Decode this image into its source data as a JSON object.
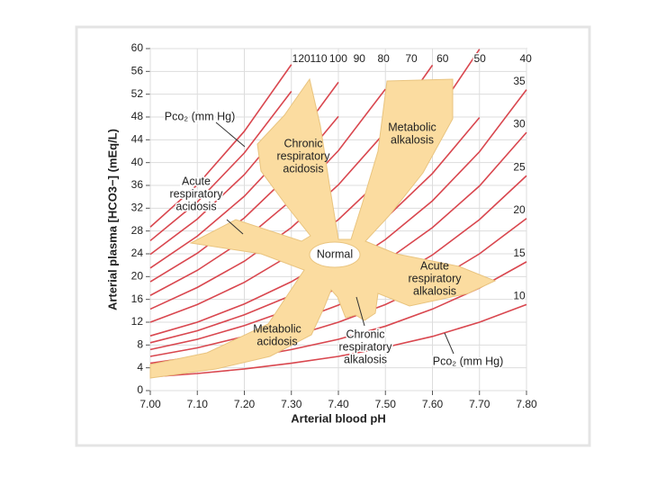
{
  "chart_data": {
    "type": "line",
    "xlabel": "Arterial blood pH",
    "ylabel": "Arterial plasma [HCO3−] (mEq/L)",
    "xlim": [
      7.0,
      7.8
    ],
    "ylim": [
      0,
      60
    ],
    "xticks": [
      {
        "value": 7.0,
        "label": "7.00"
      },
      {
        "value": 7.1,
        "label": "7.10"
      },
      {
        "value": 7.2,
        "label": "7.20"
      },
      {
        "value": 7.3,
        "label": "7.30"
      },
      {
        "value": 7.4,
        "label": "7.40"
      },
      {
        "value": 7.5,
        "label": "7.50"
      },
      {
        "value": 7.6,
        "label": "7.60"
      },
      {
        "value": 7.7,
        "label": "7.70"
      },
      {
        "value": 7.8,
        "label": "7.80"
      }
    ],
    "yticks": [
      0,
      4,
      8,
      12,
      16,
      20,
      24,
      28,
      32,
      36,
      40,
      44,
      48,
      52,
      56,
      60
    ],
    "grid": true,
    "x": [
      7.0,
      7.1,
      7.2,
      7.3,
      7.4,
      7.5,
      7.6,
      7.7,
      7.8
    ],
    "series": [
      {
        "name": "10",
        "color": "#d9474f",
        "values": [
          2.4,
          3.0,
          3.8,
          4.8,
          6.0,
          7.6,
          9.5,
          12.0,
          15.1
        ]
      },
      {
        "name": "15",
        "color": "#d9474f",
        "values": [
          3.6,
          4.5,
          5.7,
          7.2,
          9.0,
          11.3,
          14.3,
          18.0,
          22.6
        ]
      },
      {
        "name": "20",
        "color": "#d9474f",
        "values": [
          4.8,
          6.0,
          7.6,
          9.5,
          12.0,
          15.1,
          19.0,
          24.0,
          30.2
        ]
      },
      {
        "name": "25",
        "color": "#d9474f",
        "values": [
          6.0,
          7.5,
          9.5,
          11.9,
          15.0,
          18.9,
          23.8,
          30.0,
          37.7
        ]
      },
      {
        "name": "30",
        "color": "#d9474f",
        "values": [
          7.2,
          9.0,
          11.4,
          14.3,
          18.0,
          22.7,
          28.6,
          35.9,
          45.3
        ]
      },
      {
        "name": "35",
        "color": "#d9474f",
        "values": [
          8.4,
          10.5,
          13.3,
          16.7,
          21.0,
          26.5,
          33.3,
          41.9,
          52.8
        ]
      },
      {
        "name": "40",
        "color": "#d9474f",
        "values": [
          9.6,
          12.0,
          15.2,
          19.1,
          24.0,
          30.2,
          38.1,
          47.9,
          null
        ]
      },
      {
        "name": "50",
        "color": "#d9474f",
        "values": [
          12.0,
          15.1,
          19.0,
          23.9,
          30.0,
          37.8,
          47.6,
          59.9,
          null
        ]
      },
      {
        "name": "60",
        "color": "#d9474f",
        "values": [
          14.3,
          18.1,
          22.7,
          28.6,
          36.1,
          45.4,
          57.1,
          null,
          null
        ]
      },
      {
        "name": "70",
        "color": "#d9474f",
        "values": [
          16.7,
          21.1,
          26.5,
          33.4,
          42.1,
          52.9,
          null,
          null,
          null
        ]
      },
      {
        "name": "80",
        "color": "#d9474f",
        "values": [
          19.1,
          24.1,
          30.3,
          38.2,
          48.1,
          null,
          null,
          null,
          null
        ]
      },
      {
        "name": "90",
        "color": "#d9474f",
        "values": [
          21.5,
          27.1,
          34.1,
          42.9,
          54.1,
          null,
          null,
          null,
          null
        ]
      },
      {
        "name": "100",
        "color": "#d9474f",
        "values": [
          23.9,
          30.1,
          37.9,
          47.7,
          null,
          null,
          null,
          null,
          null
        ]
      },
      {
        "name": "110",
        "color": "#d9474f",
        "values": [
          26.3,
          33.1,
          41.7,
          52.5,
          null,
          null,
          null,
          null,
          null
        ]
      },
      {
        "name": "120",
        "color": "#d9474f",
        "values": [
          28.7,
          36.1,
          45.5,
          57.2,
          null,
          null,
          null,
          null,
          null
        ]
      }
    ],
    "annotations": {
      "pco2_top": "Pco₂ (mm Hg)",
      "pco2_bottom": "Pco₂ (mm Hg)",
      "normal": "Normal",
      "chronic_respiratory_acidosis": [
        "Chronic",
        "respiratory",
        "acidosis"
      ],
      "acute_respiratory_acidosis": [
        "Acute",
        "respiratory",
        "acidosis"
      ],
      "metabolic_alkalosis": [
        "Metabolic",
        "alkalosis"
      ],
      "acute_respiratory_alkalosis": [
        "Acute",
        "respiratory",
        "alkalosis"
      ],
      "metabolic_acidosis": [
        "Metabolic",
        "acidosis"
      ],
      "chronic_respiratory_alkalosis": [
        "Chronic",
        "respiratory",
        "alkalosis"
      ]
    }
  }
}
